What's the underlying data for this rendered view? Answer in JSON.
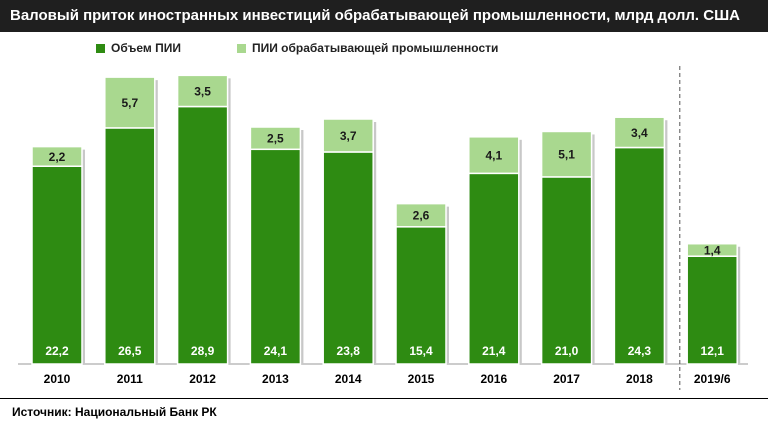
{
  "header": {
    "title": "Валовый приток иностранных инвестиций обрабатывающей промышленности, млрд долл. США"
  },
  "footer": {
    "source": "Источник: Национальный Банк РК"
  },
  "colors": {
    "dark_green": "#2e8b12",
    "light_green": "#a9d88f",
    "bar_border": "#ffffff"
  },
  "chart_data": {
    "type": "bar",
    "stacked": true,
    "title": "Валовый приток иностранных инвестиций обрабатывающей промышленности, млрд долл. США",
    "categories": [
      "2010",
      "2011",
      "2012",
      "2013",
      "2014",
      "2015",
      "2016",
      "2017",
      "2018",
      "2019/6"
    ],
    "series": [
      {
        "name": "Объем ПИИ",
        "values": [
          22.2,
          26.5,
          28.9,
          24.1,
          23.8,
          15.4,
          21.4,
          21.0,
          24.3,
          12.1
        ],
        "labels": [
          "22,2",
          "26,5",
          "28,9",
          "24,1",
          "23,8",
          "15,4",
          "21,4",
          "21,0",
          "24,3",
          "12,1"
        ]
      },
      {
        "name": "ПИИ обрабатывающей промышленности",
        "values": [
          2.2,
          5.7,
          3.5,
          2.5,
          3.7,
          2.6,
          4.1,
          5.1,
          3.4,
          1.4
        ],
        "labels": [
          "2,2",
          "5,7",
          "3,5",
          "2,5",
          "3,7",
          "2,6",
          "4,1",
          "5,1",
          "3,4",
          "1,4"
        ]
      }
    ],
    "ylim": [
      0,
      33
    ],
    "grid": false,
    "legend_position": "top-left",
    "separator_before_category": "2019/6"
  }
}
